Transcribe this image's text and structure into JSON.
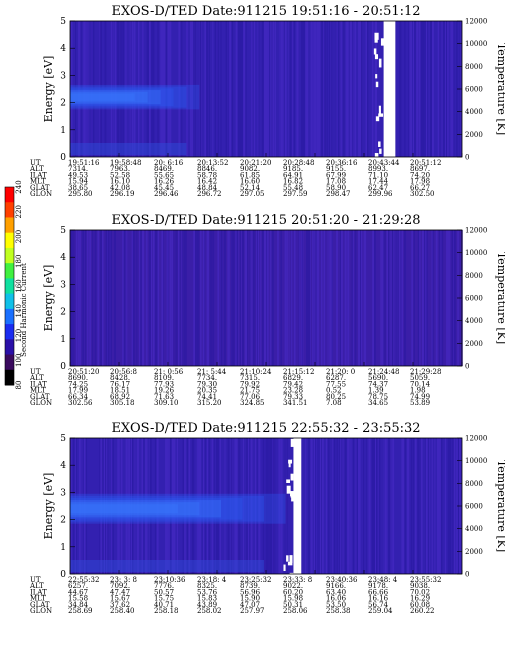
{
  "chart_data": {
    "type": "heatmap",
    "colorbar": {
      "label": "Second Harmonic Current",
      "ticks": [
        "80",
        "100",
        "120",
        "140",
        "160",
        "180",
        "200",
        "220",
        "240"
      ],
      "range": [
        80,
        240
      ],
      "colors": [
        "#000000",
        "#3a0a5e",
        "#2a10a8",
        "#1a2cf0",
        "#1a70ff",
        "#10c0e8",
        "#10e0a0",
        "#40f040",
        "#c0ff20",
        "#ffff00",
        "#ffa000",
        "#ff4000",
        "#ff0000"
      ]
    },
    "panels": [
      {
        "title": "EXOS-D/TED   Date:911215   19:51:16 - 20:51:12",
        "ylabel": "Energy [eV]",
        "y2label": "Temperature [K]",
        "yticks": [
          "0",
          "1",
          "2",
          "3",
          "4",
          "5"
        ],
        "y2ticks": [
          "0",
          "2000",
          "4000",
          "6000",
          "8000",
          "10000",
          "12000"
        ],
        "ylim": [
          0,
          5
        ],
        "y2lim": [
          0,
          12000
        ],
        "base_color": "#3320b0",
        "band": {
          "energy_center": 2.2,
          "energy_width": 0.9,
          "extent_fraction": 0.33,
          "color": "#2a5cff"
        },
        "gaps": [
          0.8,
          0.83
        ],
        "xticks": [
          "19:51:16",
          "19:58:48",
          "20: 6:16",
          "20:13:52",
          "20:21:20",
          "20:28:48",
          "20:36:16",
          "20:43:44",
          "20:51:12"
        ],
        "table": [
          {
            "label": "UT",
            "values": [
              "19:51:16",
              "19:58:48",
              "20: 6:16",
              "20:13:52",
              "20:21:20",
              "20:28:48",
              "20:36:16",
              "20:43:44",
              "20:51:12"
            ]
          },
          {
            "label": "ALT",
            "values": [
              "7314.",
              "7963.",
              "8469.",
              "8846.",
              "9082.",
              "9185.",
              "9155.",
              "8993.",
              "8697."
            ]
          },
          {
            "label": "ILAT",
            "values": [
              "49.53",
              "52.58",
              "55.65",
              "58.78",
              "61.85",
              "64.91",
              "67.99",
              "71.10",
              "74.20"
            ]
          },
          {
            "label": "MLT",
            "values": [
              "15.94",
              "16.10",
              "16.26",
              "16.42",
              "16.60",
              "16.82",
              "17.08",
              "17.44",
              "17.98"
            ]
          },
          {
            "label": "GLAT",
            "values": [
              "38.65",
              "42.08",
              "45.45",
              "48.84",
              "52.14",
              "55.48",
              "58.90",
              "62.47",
              "66.27"
            ]
          },
          {
            "label": "GLON",
            "values": [
              "295.80",
              "296.19",
              "296.46",
              "296.72",
              "297.05",
              "297.59",
              "298.47",
              "299.96",
              "302.50"
            ]
          }
        ]
      },
      {
        "title": "EXOS-D/TED   Date:911215   20:51:20 - 21:29:28",
        "ylabel": "Energy [eV]",
        "y2label": "Temperature [K]",
        "yticks": [
          "0",
          "1",
          "2",
          "3",
          "4",
          "5"
        ],
        "y2ticks": [
          "0",
          "2000",
          "4000",
          "6000",
          "8000",
          "10000",
          "12000"
        ],
        "ylim": [
          0,
          5
        ],
        "y2lim": [
          0,
          12000
        ],
        "base_color": "#3a1ea8",
        "band": null,
        "gaps": [],
        "xticks": [
          "20:51:20",
          "20:56:8",
          "21: 0:56",
          "21: 5:44",
          "21:10:24",
          "21:15:12",
          "21:20: 0",
          "21:24:48",
          "21:29:28"
        ],
        "table": [
          {
            "label": "UT",
            "values": [
              "20:51:20",
              "20:56:8",
              "21: 0:56",
              "21: 5:44",
              "21:10:24",
              "21:15:12",
              "21:20: 0",
              "21:24:48",
              "21:29:28"
            ]
          },
          {
            "label": "ALT",
            "values": [
              "8690.",
              "8428.",
              "8109.",
              "7734.",
              "7315.",
              "6829.",
              "6287.",
              "5690.",
              "5059."
            ]
          },
          {
            "label": "ILAT",
            "values": [
              "74.25",
              "76.17",
              "77.93",
              "79.30",
              "79.92",
              "79.42",
              "77.55",
              "74.37",
              "70.14"
            ]
          },
          {
            "label": "MLT",
            "values": [
              "17.99",
              "18.51",
              "19.26",
              "20.35",
              "21.75",
              "23.28",
              "0.52",
              "1.39",
              "1.98"
            ]
          },
          {
            "label": "GLAT",
            "values": [
              "66.34",
              "68.92",
              "71.63",
              "74.41",
              "77.06",
              "79.33",
              "80.25",
              "78.75",
              "74.99"
            ]
          },
          {
            "label": "GLON",
            "values": [
              "302.56",
              "305.18",
              "309.10",
              "315.20",
              "324.85",
              "341.51",
              "7.08",
              "34.65",
              "53.89"
            ]
          }
        ]
      },
      {
        "title": "EXOS-D/TED   Date:911215   22:55:32 - 23:55:32",
        "ylabel": "Energy [eV]",
        "y2label": "Temperature [K]",
        "yticks": [
          "0",
          "1",
          "2",
          "3",
          "4",
          "5"
        ],
        "y2ticks": [
          "0",
          "2000",
          "4000",
          "6000",
          "8000",
          "10000",
          "12000"
        ],
        "ylim": [
          0,
          5
        ],
        "y2lim": [
          0,
          12000
        ],
        "base_color": "#3320b0",
        "band": {
          "energy_center": 2.4,
          "energy_width": 1.1,
          "extent_fraction": 0.55,
          "color": "#2a5cff"
        },
        "gaps": [
          0.57,
          0.59
        ],
        "xticks": [
          "22:55:32",
          "23: 3: 8",
          "23:10:36",
          "23:18: 4",
          "23:25:32",
          "23:33: 8",
          "23:40:36",
          "23:48: 4",
          "23:55:32"
        ],
        "table": [
          {
            "label": "UT",
            "values": [
              "22:55:32",
              "23: 3: 8",
              "23:10:36",
              "23:18: 4",
              "23:25:32",
              "23:33: 8",
              "23:40:36",
              "23:48: 4",
              "23:55:32"
            ]
          },
          {
            "label": "ALT",
            "values": [
              "6257.",
              "7092.",
              "7776.",
              "8325.",
              "8739.",
              "9022.",
              "9166.",
              "9178.",
              "9038."
            ]
          },
          {
            "label": "ILAT",
            "values": [
              "44.67",
              "47.47",
              "50.57",
              "53.76",
              "56.96",
              "60.20",
              "63.40",
              "66.66",
              "70.02"
            ]
          },
          {
            "label": "MLT",
            "values": [
              "15.58",
              "15.67",
              "15.75",
              "15.83",
              "15.90",
              "15.98",
              "16.06",
              "16.16",
              "16.29"
            ]
          },
          {
            "label": "GLAT",
            "values": [
              "34.84",
              "37.62",
              "40.71",
              "43.89",
              "47.07",
              "50.31",
              "53.50",
              "56.74",
              "60.08"
            ]
          },
          {
            "label": "GLON",
            "values": [
              "258.69",
              "258.40",
              "258.18",
              "258.02",
              "257.97",
              "258.06",
              "258.38",
              "259.04",
              "260.22"
            ]
          }
        ]
      }
    ]
  }
}
